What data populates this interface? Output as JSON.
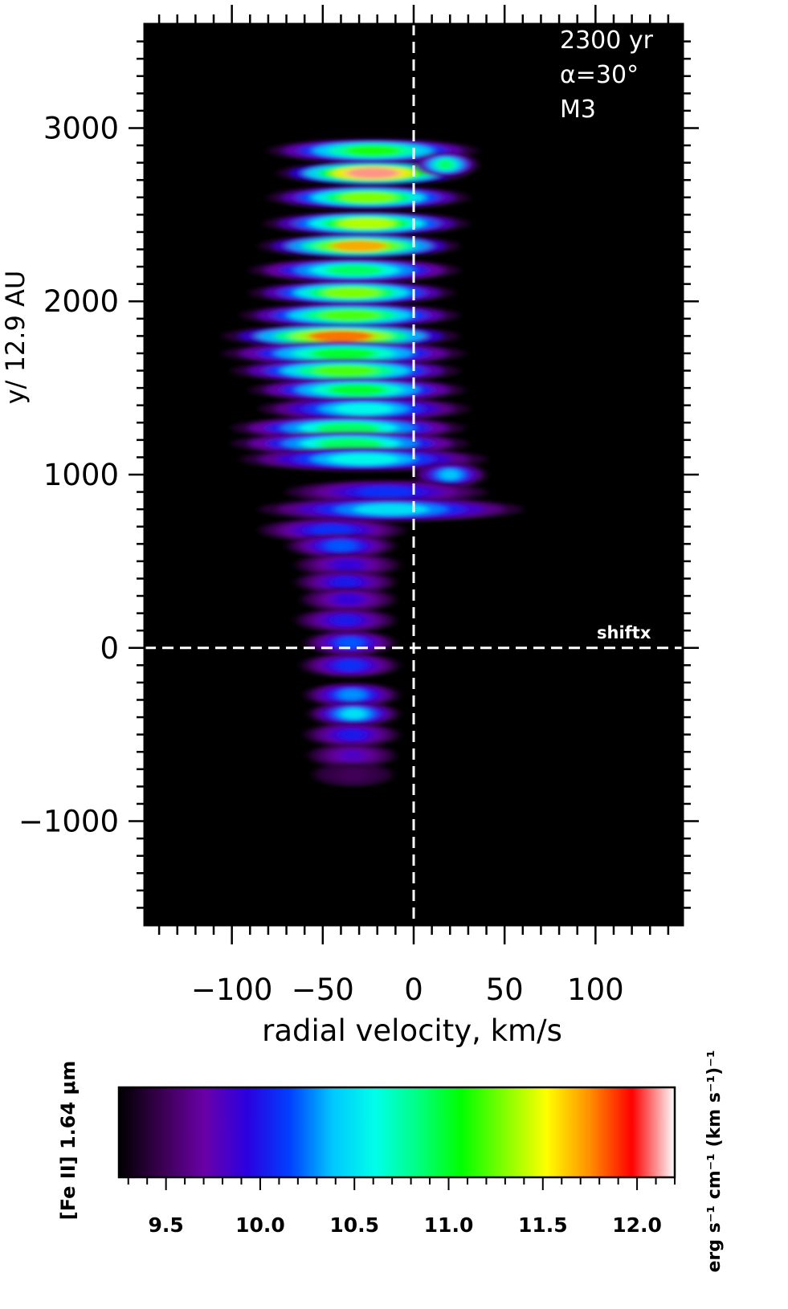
{
  "chart_data": {
    "type": "heatmap",
    "panel_text": [
      "2300 yr",
      "α=30°",
      "M3"
    ],
    "marker_label": "shiftx",
    "xlabel": "radial velocity, km/s",
    "ylabel": "y/ 12.9 AU",
    "xlim": [
      -148,
      148
    ],
    "ylim": [
      -1600,
      3600
    ],
    "x_ticks": [
      -100,
      -50,
      0,
      50,
      100
    ],
    "x_tick_labels": [
      "−100",
      "−50",
      "0",
      "50",
      "100"
    ],
    "y_ticks": [
      -1000,
      0,
      1000,
      2000,
      3000
    ],
    "y_tick_labels": [
      "−1000",
      "0",
      "1000",
      "2000",
      "3000"
    ],
    "reference_lines": {
      "x": 0,
      "y": 0
    },
    "colorbar": {
      "label_left": "[Fe II] 1.64 μm",
      "label_right": "erg s⁻¹ cm⁻¹ (km s⁻¹)⁻¹",
      "range": [
        9.25,
        12.2
      ],
      "ticks": [
        9.5,
        10.0,
        10.5,
        11.0,
        11.5,
        12.0
      ],
      "tick_labels": [
        "9.5",
        "10.0",
        "10.5",
        "11.0",
        "11.5",
        "12.0"
      ],
      "colormap": [
        "#000000",
        "#3a0050",
        "#6a00a8",
        "#2a00e0",
        "#0040ff",
        "#00c8ff",
        "#00ffe8",
        "#00ff80",
        "#00ff00",
        "#80ff00",
        "#ffff00",
        "#ff9000",
        "#ff0000",
        "#ffffff"
      ]
    },
    "emission_blobs": [
      {
        "v_min": -80,
        "v_max": 35,
        "y": 2870,
        "level": 11.1
      },
      {
        "v_min": -75,
        "v_max": 30,
        "y": 2740,
        "level": 12.1
      },
      {
        "v_min": 0,
        "v_max": 35,
        "y": 2790,
        "level": 10.9
      },
      {
        "v_min": -80,
        "v_max": 30,
        "y": 2600,
        "level": 11.3
      },
      {
        "v_min": -82,
        "v_max": 30,
        "y": 2450,
        "level": 11.4
      },
      {
        "v_min": -85,
        "v_max": 25,
        "y": 2320,
        "level": 11.7
      },
      {
        "v_min": -90,
        "v_max": 25,
        "y": 2180,
        "level": 10.9
      },
      {
        "v_min": -90,
        "v_max": 22,
        "y": 2050,
        "level": 11.3
      },
      {
        "v_min": -95,
        "v_max": 25,
        "y": 1920,
        "level": 11.2
      },
      {
        "v_min": -105,
        "v_max": 25,
        "y": 1800,
        "level": 11.8
      },
      {
        "v_min": -105,
        "v_max": 28,
        "y": 1700,
        "level": 11.0
      },
      {
        "v_min": -100,
        "v_max": 25,
        "y": 1600,
        "level": 11.2
      },
      {
        "v_min": -90,
        "v_max": 28,
        "y": 1490,
        "level": 11.0
      },
      {
        "v_min": -85,
        "v_max": 30,
        "y": 1380,
        "level": 10.6
      },
      {
        "v_min": -100,
        "v_max": 28,
        "y": 1270,
        "level": 10.9
      },
      {
        "v_min": -100,
        "v_max": 30,
        "y": 1180,
        "level": 10.9
      },
      {
        "v_min": -95,
        "v_max": 40,
        "y": 1090,
        "level": 10.6
      },
      {
        "v_min": 0,
        "v_max": 40,
        "y": 1000,
        "level": 10.4
      },
      {
        "v_min": -70,
        "v_max": 40,
        "y": 900,
        "level": 10.1
      },
      {
        "v_min": -85,
        "v_max": 60,
        "y": 800,
        "level": 10.5
      },
      {
        "v_min": -85,
        "v_max": -5,
        "y": 680,
        "level": 10.1
      },
      {
        "v_min": -70,
        "v_max": -10,
        "y": 590,
        "level": 10.2
      },
      {
        "v_min": -65,
        "v_max": -8,
        "y": 480,
        "level": 9.9
      },
      {
        "v_min": -65,
        "v_max": -10,
        "y": 380,
        "level": 10.0
      },
      {
        "v_min": -62,
        "v_max": -10,
        "y": 280,
        "level": 9.9
      },
      {
        "v_min": -65,
        "v_max": -10,
        "y": 160,
        "level": 10.0
      },
      {
        "v_min": -60,
        "v_max": -10,
        "y": 30,
        "level": 10.2
      },
      {
        "v_min": -62,
        "v_max": -8,
        "y": -100,
        "level": 10.1
      },
      {
        "v_min": -60,
        "v_max": -8,
        "y": -270,
        "level": 10.3
      },
      {
        "v_min": -58,
        "v_max": -8,
        "y": -380,
        "level": 10.5
      },
      {
        "v_min": -60,
        "v_max": -8,
        "y": -500,
        "level": 10.0
      },
      {
        "v_min": -58,
        "v_max": -10,
        "y": -620,
        "level": 9.8
      },
      {
        "v_min": -55,
        "v_max": -12,
        "y": -730,
        "level": 9.5
      }
    ]
  }
}
